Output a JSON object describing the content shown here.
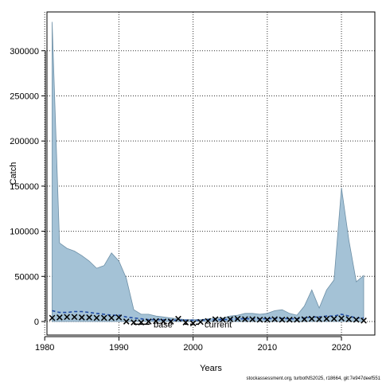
{
  "chart_data": {
    "type": "area",
    "xlabel": "Years",
    "ylabel": "Catch",
    "xlim": [
      1980.3,
      2024.5
    ],
    "ylim": [
      -15000,
      343000
    ],
    "xticks": [
      1980,
      1990,
      2000,
      2010,
      2020
    ],
    "yticks": [
      0,
      50000,
      100000,
      150000,
      200000,
      250000,
      300000
    ],
    "grid": true,
    "years": [
      1981,
      1982,
      1983,
      1984,
      1985,
      1986,
      1987,
      1988,
      1989,
      1990,
      1991,
      1992,
      1993,
      1994,
      1995,
      1996,
      1997,
      1998,
      1999,
      2000,
      2001,
      2002,
      2003,
      2004,
      2005,
      2006,
      2007,
      2008,
      2009,
      2010,
      2011,
      2012,
      2013,
      2014,
      2015,
      2016,
      2017,
      2018,
      2019,
      2020,
      2021,
      2022,
      2023
    ],
    "series": [
      {
        "kind": "interval",
        "upper": [
          332000,
          87000,
          81000,
          78000,
          73000,
          67000,
          59000,
          62000,
          76000,
          67000,
          48000,
          13000,
          8000,
          8000,
          6000,
          5000,
          4000,
          3000,
          2000,
          2000,
          2000,
          3000,
          4000,
          4000,
          6000,
          7000,
          9000,
          9000,
          8000,
          9000,
          12000,
          13000,
          9000,
          7000,
          17000,
          35000,
          15000,
          35000,
          46000,
          148000,
          90000,
          44000,
          51000
        ],
        "lower": [
          0,
          0,
          0,
          0,
          0,
          0,
          0,
          0,
          0,
          0,
          0,
          0,
          0,
          0,
          0,
          0,
          0,
          0,
          0,
          0,
          0,
          0,
          0,
          0,
          0,
          0,
          0,
          0,
          0,
          0,
          0,
          0,
          0,
          0,
          0,
          0,
          0,
          0,
          0,
          0,
          0,
          0,
          0
        ]
      },
      {
        "kind": "dashed",
        "values": [
          12000,
          10000,
          10000,
          11000,
          11000,
          10000,
          9000,
          8000,
          7000,
          7000,
          5000,
          4000,
          3000,
          2000,
          2000,
          2000,
          1500,
          1500,
          1500,
          1500,
          1500,
          2000,
          2000,
          2000,
          2500,
          3000,
          3000,
          3000,
          3000,
          3000,
          3500,
          3500,
          3000,
          3000,
          4000,
          5000,
          5000,
          6000,
          6000,
          8000,
          6000,
          4000,
          4000
        ]
      },
      {
        "kind": "points",
        "years": [
          1981,
          1982,
          1983,
          1984,
          1985,
          1986,
          1987,
          1988,
          1989,
          1990,
          1991,
          1992,
          1993,
          1994,
          1995,
          1996,
          1997,
          1998,
          1999,
          2000,
          2001,
          2002,
          2003,
          2004,
          2005,
          2006,
          2007,
          2008,
          2009,
          2010,
          2011,
          2012,
          2013,
          2014,
          2015,
          2016,
          2017,
          2018,
          2019,
          2020,
          2021,
          2022,
          2023
        ],
        "values": [
          4000,
          4500,
          5000,
          5000,
          4500,
          4500,
          4000,
          4000,
          4000,
          4500,
          0,
          -1000,
          -1000,
          0,
          500,
          0,
          0,
          3000,
          -1000,
          -2000,
          -500,
          500,
          2500,
          2000,
          2500,
          3000,
          2500,
          2500,
          2000,
          2000,
          2500,
          2000,
          2000,
          2000,
          2500,
          3000,
          2500,
          3000,
          3000,
          3500,
          2500,
          2000,
          1000
        ]
      }
    ],
    "legend": [
      {
        "label": "base",
        "style": "solid"
      },
      {
        "label": "current",
        "style": "dashed"
      }
    ],
    "legend_anchor": [
      1992,
      -3000
    ],
    "footer": "stockassessment.org, turbotNS2025, r18664, git:7e947deef551",
    "colors": {
      "band": "#a4c2d6",
      "band_edge": "#6d8fa6",
      "ink": "#000000",
      "dashed": "#1f4aa3",
      "grid": "#333333"
    }
  }
}
